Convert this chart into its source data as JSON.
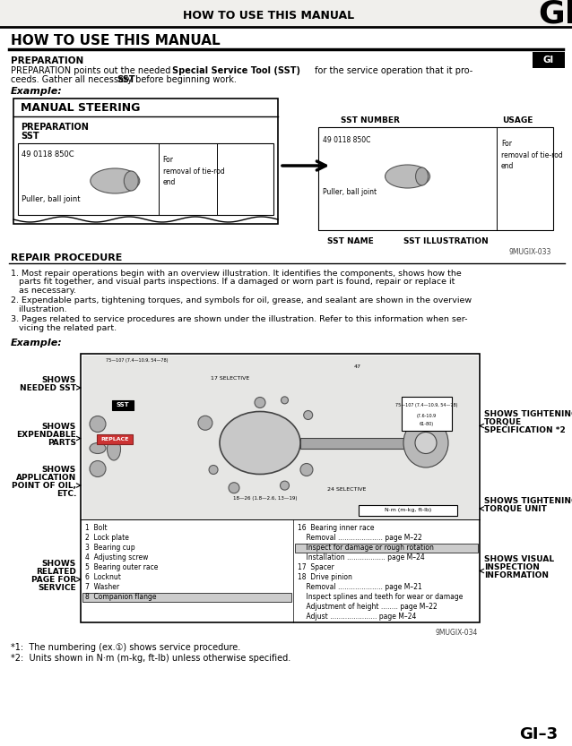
{
  "page_title": "HOW TO USE THIS MANUAL",
  "page_code": "GI",
  "page_number": "GI–3",
  "section_title": "HOW TO USE THIS MANUAL",
  "prep_heading": "PREPARATION",
  "prep_text1": "PREPARATION points out the needed ",
  "prep_bold1": "Special Service Tool (SST)",
  "prep_text2": " for the service operation that it pro-",
  "prep_text3": "ceeds. Gather all necessary ",
  "prep_bold2": "SST",
  "prep_text4": " before beginning work.",
  "example1_label": "Example:",
  "box1_title": "MANUAL STEERING",
  "box1_sub1": "PREPARATION",
  "box1_sub2": "SST",
  "box1_part_num": "49 0118 850C",
  "box1_part_name": "Puller, ball joint",
  "sst_number_label": "SST NUMBER",
  "usage_label": "USAGE",
  "sst_name_label": "SST NAME",
  "sst_illus_label": "SST ILLUSTRATION",
  "fig1_code": "9MUGlX-033",
  "repair_heading": "REPAIR PROCEDURE",
  "repair_item1_lines": [
    "1. Most repair operations begin with an overview illustration. It identifies the components, shows how the",
    "   parts fit together, and visual parts inspections. If a damaged or worn part is found, repair or replace it",
    "   as necessary."
  ],
  "repair_item2_lines": [
    "2. Expendable parts, tightening torques, and symbols for oil, grease, and sealant are shown in the overview",
    "   illustration."
  ],
  "repair_item3_lines": [
    "3. Pages related to service procedures are shown under the illustration. Refer to this information when ser-",
    "   vicing the related part."
  ],
  "example2_label": "Example:",
  "left_labels": [
    [
      "SHOWS",
      "NEEDED SST"
    ],
    [
      "SHOWS",
      "EXPENDABLE",
      "PARTS"
    ],
    [
      "SHOWS",
      "APPLICATION",
      "POINT OF OIL,",
      "ETC."
    ],
    [
      "SHOWS",
      "RELATED",
      "PAGE FOR",
      "SERVICE"
    ]
  ],
  "right_labels": [
    [
      "SHOWS TIGHTENING",
      "TORQUE",
      "SPECIFICATION *2"
    ],
    [
      "SHOWS TIGHTENING",
      "TORQUE UNIT"
    ],
    [
      "SHOWS VISUAL",
      "INSPECTION",
      "INFORMATION"
    ]
  ],
  "fig2_code": "9MUGlX-034",
  "left_parts": [
    "1  Bolt",
    "2  Lock plate",
    "3  Bearing cup",
    "4  Adjusting screw",
    "5  Bearing outer race",
    "6  Locknut",
    "7  Washer",
    "8  Companion flange"
  ],
  "right_parts": [
    "16  Bearing inner race",
    "    Removal ..................... page M–22",
    "HIGHLIGHT:    Inspect for damage or rough rotation",
    "    Installation .................. page M–24",
    "17  Spacer",
    "18  Drive pinion",
    "    Removal ..................... page M–21",
    "    Inspect splines and teeth for wear or damage",
    "    Adjustment of height ........ page M–22",
    "    Adjust ...................... page M–24"
  ],
  "footnote1": "*1:  The numbering (ex.①) shows service procedure.",
  "footnote2": "*2:  Units shown in N·m (m-kg, ft-lb) unless otherwise specified.",
  "bg_color": "#f2f1ee",
  "text_color": "#1a1a1a"
}
